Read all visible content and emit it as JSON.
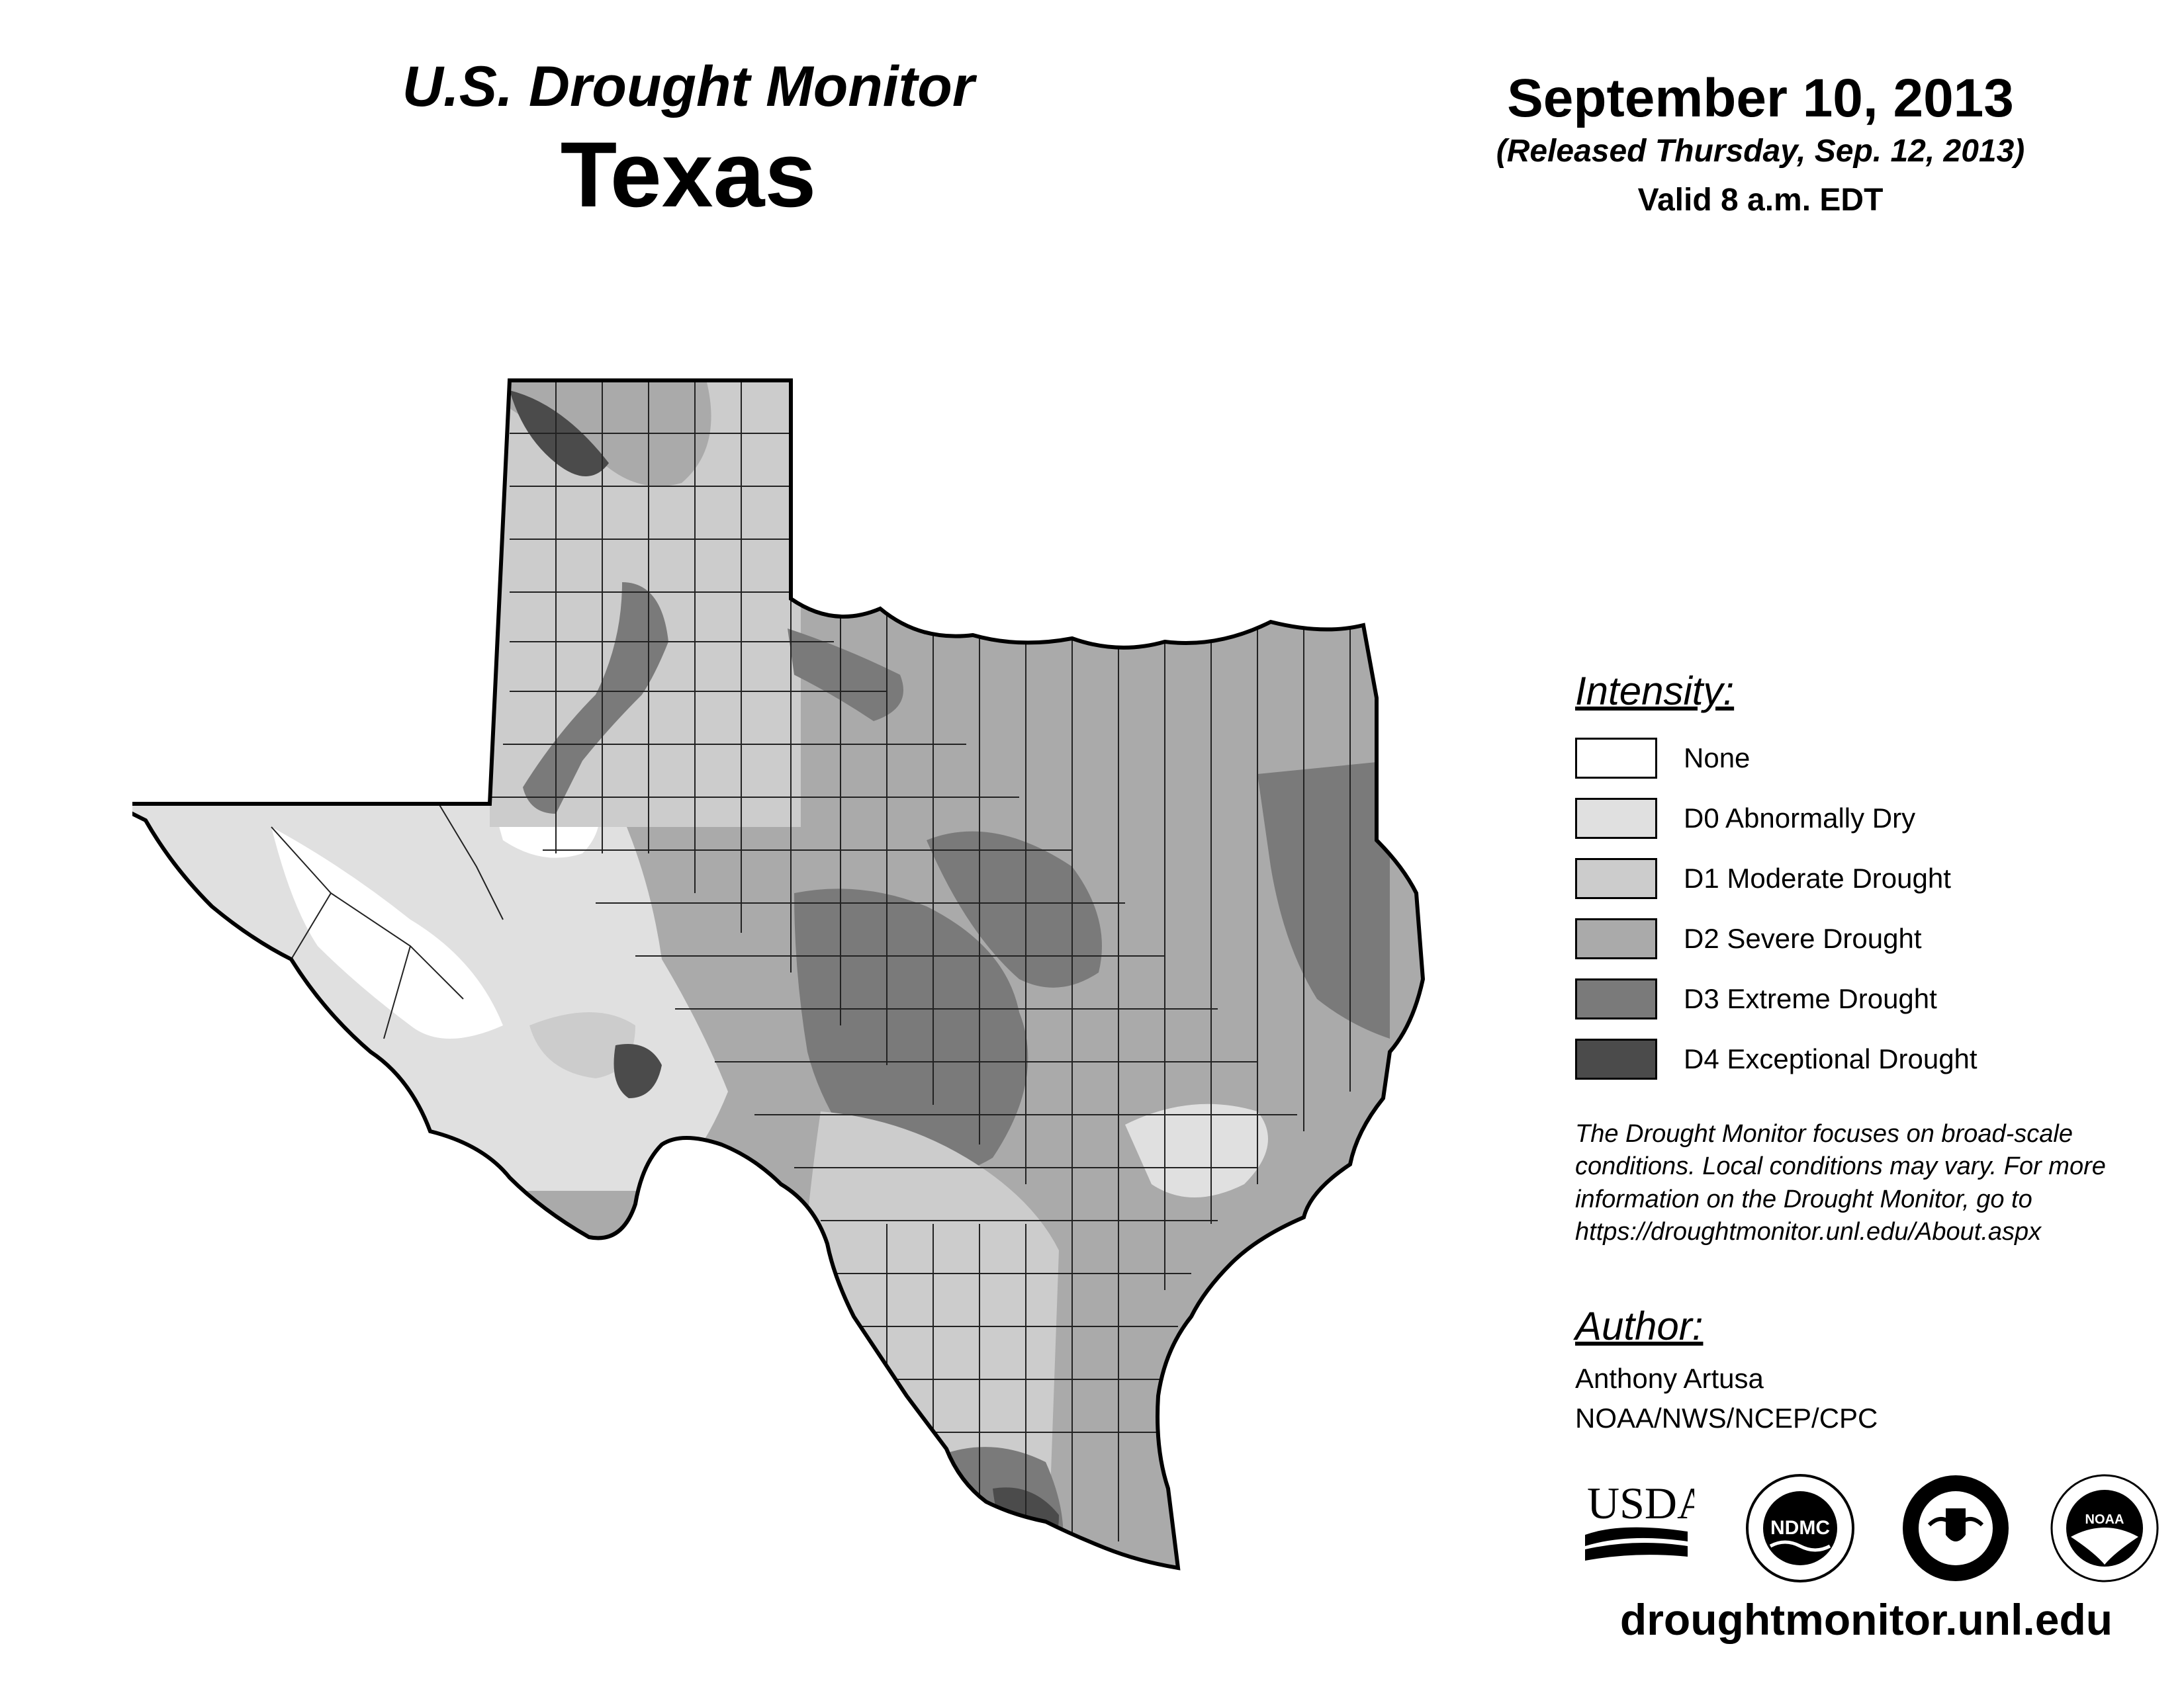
{
  "header": {
    "title": "U.S. Drought Monitor",
    "state": "Texas",
    "date": "September 10, 2013",
    "released": "(Released Thursday, Sep. 12, 2013)",
    "valid": "Valid 8 a.m. EDT"
  },
  "legend": {
    "title": "Intensity:",
    "items": [
      {
        "code": "None",
        "label": "None",
        "color": "#ffffff"
      },
      {
        "code": "D0",
        "label": "D0 Abnormally Dry",
        "color": "#e0e0e0"
      },
      {
        "code": "D1",
        "label": "D1 Moderate Drought",
        "color": "#cccccc"
      },
      {
        "code": "D2",
        "label": "D2 Severe Drought",
        "color": "#aaaaaa"
      },
      {
        "code": "D3",
        "label": "D3 Extreme Drought",
        "color": "#7a7a7a"
      },
      {
        "code": "D4",
        "label": "D4 Exceptional Drought",
        "color": "#4b4b4b"
      }
    ]
  },
  "note": "The Drought Monitor focuses on broad-scale conditions. Local conditions may vary. For more information on the Drought Monitor, go to https://droughtmonitor.unl.edu/About.aspx",
  "author": {
    "title": "Author:",
    "name": "Anthony Artusa",
    "org": "NOAA/NWS/NCEP/CPC"
  },
  "logos": {
    "usda": "USDA",
    "ndmc": "NDMC",
    "noaa": "NOAA"
  },
  "website": "droughtmonitor.unl.edu",
  "map": {
    "region": "Texas",
    "zones": [
      {
        "name": "trans-pecos",
        "category": "None"
      },
      {
        "name": "far-west",
        "category": "D0"
      },
      {
        "name": "panhandle",
        "category": "D1"
      },
      {
        "name": "panhandle-north",
        "category": "D2"
      },
      {
        "name": "panhandle-core",
        "category": "D4"
      },
      {
        "name": "panhandle-strip",
        "category": "D3"
      },
      {
        "name": "south-plains",
        "category": "D2"
      },
      {
        "name": "central",
        "category": "D2"
      },
      {
        "name": "central-corridor",
        "category": "D3"
      },
      {
        "name": "east",
        "category": "D2"
      },
      {
        "name": "east-border",
        "category": "D3"
      },
      {
        "name": "edwards",
        "category": "D1"
      },
      {
        "name": "edwards-spot",
        "category": "D4"
      },
      {
        "name": "south",
        "category": "D1"
      },
      {
        "name": "valley",
        "category": "D3"
      },
      {
        "name": "valley-core",
        "category": "D4"
      },
      {
        "name": "coast",
        "category": "D0"
      }
    ]
  }
}
